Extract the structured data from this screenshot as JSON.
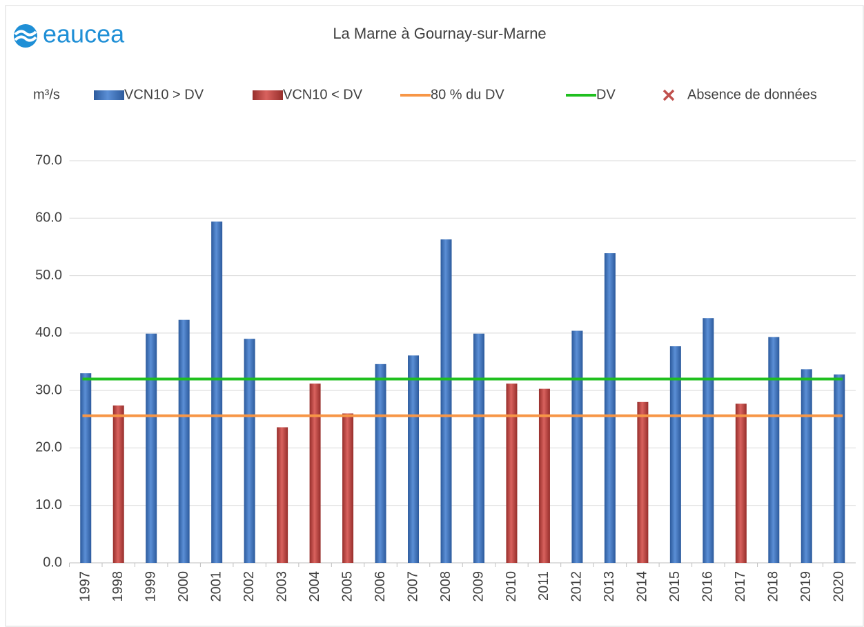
{
  "brand": "eaucea",
  "chart_data": {
    "type": "bar",
    "title": "La Marne à Gournay-sur-Marne",
    "y_label": "m³/s",
    "categories": [
      "1997",
      "1998",
      "1999",
      "2000",
      "2001",
      "2002",
      "2003",
      "2004",
      "2005",
      "2006",
      "2007",
      "2008",
      "2009",
      "2010",
      "2011",
      "2012",
      "2013",
      "2014",
      "2015",
      "2016",
      "2017",
      "2018",
      "2019",
      "2020"
    ],
    "series": [
      {
        "name": "VCN10 > DV",
        "color": "#4f81bd",
        "values": [
          33.0,
          null,
          39.9,
          42.3,
          59.4,
          39.0,
          null,
          null,
          null,
          34.6,
          36.1,
          56.3,
          39.9,
          null,
          null,
          40.4,
          53.9,
          null,
          37.7,
          42.6,
          null,
          39.3,
          33.7,
          32.8
        ]
      },
      {
        "name": "VCN10 < DV",
        "color": "#c0504d",
        "values": [
          null,
          27.4,
          null,
          null,
          null,
          null,
          23.6,
          31.2,
          26.0,
          null,
          null,
          null,
          null,
          31.2,
          30.3,
          null,
          null,
          28.0,
          null,
          null,
          27.7,
          null,
          null,
          null
        ]
      }
    ],
    "reference_lines": [
      {
        "name": "80 % du DV",
        "color": "#f79646",
        "value": 25.6
      },
      {
        "name": "DV",
        "color": "#1fbf1f",
        "value": 32.0
      }
    ],
    "legend_extra": {
      "name": "Absence de données",
      "color": "#c0504d",
      "marker": "x"
    },
    "ylim": [
      0,
      70
    ],
    "yticks": [
      {
        "value": 0,
        "label": "0.0"
      },
      {
        "value": 10,
        "label": "10.0"
      },
      {
        "value": 20,
        "label": "20.0"
      },
      {
        "value": 30,
        "label": "30.0"
      },
      {
        "value": 40,
        "label": "40.0"
      },
      {
        "value": 50,
        "label": "50.0"
      },
      {
        "value": 60,
        "label": "60.0"
      },
      {
        "value": 70,
        "label": "70.0"
      }
    ],
    "grid": true
  }
}
